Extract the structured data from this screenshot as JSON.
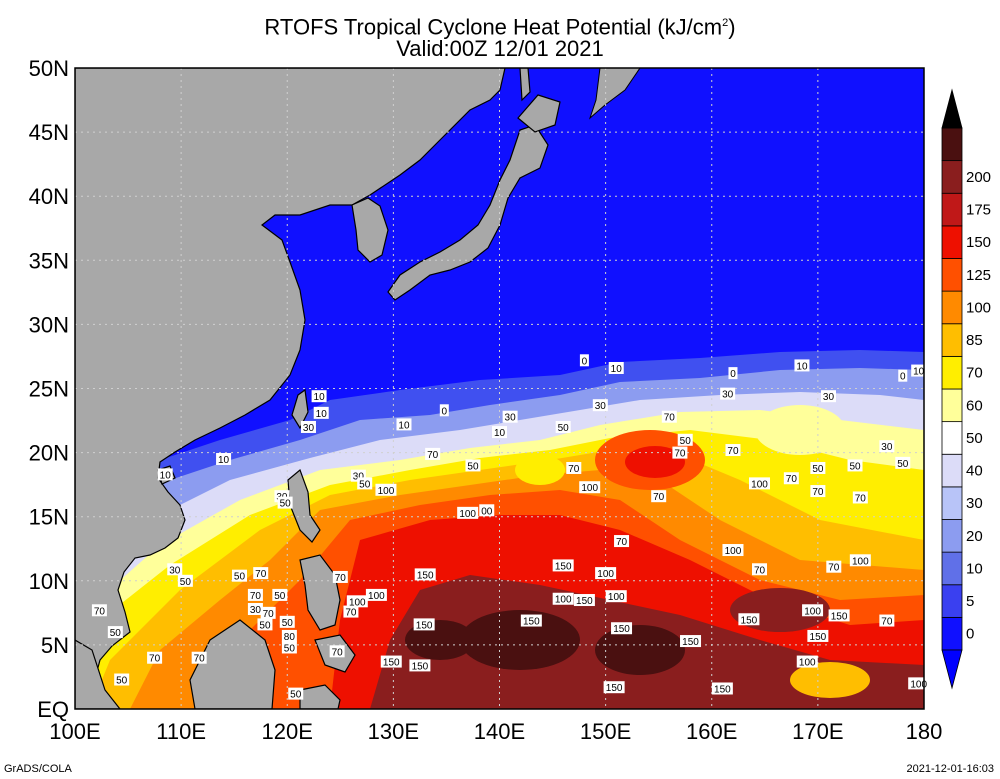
{
  "title_line1": "RTOFS Tropical Cyclone Heat Potential (kJ/cm",
  "title_sup": "2",
  "title_line1_end": ")",
  "title_line2": "Valid:00Z 12/01 2021",
  "lon_labels": [
    "100E",
    "110E",
    "120E",
    "130E",
    "140E",
    "150E",
    "160E",
    "170E",
    "180"
  ],
  "lat_labels": [
    "EQ",
    "5N",
    "10N",
    "15N",
    "20N",
    "25N",
    "30N",
    "35N",
    "40N",
    "45N",
    "50N"
  ],
  "colorbar": {
    "labels": [
      "0",
      "5",
      "10",
      "20",
      "30",
      "40",
      "50",
      "60",
      "70",
      "85",
      "100",
      "125",
      "150",
      "175",
      "200"
    ],
    "colors": [
      "#1010ff",
      "#3a40f0",
      "#6070e8",
      "#8c9cf0",
      "#b8c4f8",
      "#dcdcf8",
      "#ffffff",
      "#ffff9a",
      "#ffee00",
      "#ffbe00",
      "#ff8a00",
      "#ff5000",
      "#ee1000",
      "#c01818",
      "#8a1e1e",
      "#4a1010"
    ],
    "top_arrow_color": "#000000",
    "bottom_arrow_color": "#0000ff"
  },
  "contour_labels": [
    {
      "t": "0",
      "lon": 148.0,
      "lat": 27.2
    },
    {
      "t": "10",
      "lon": 151.0,
      "lat": 26.6
    },
    {
      "t": "0",
      "lon": 162.0,
      "lat": 26.2
    },
    {
      "t": "10",
      "lon": 168.5,
      "lat": 26.8
    },
    {
      "t": "0",
      "lon": 178.0,
      "lat": 26.0
    },
    {
      "t": "10",
      "lon": 179.5,
      "lat": 26.4
    },
    {
      "t": "30",
      "lon": 149.5,
      "lat": 23.7
    },
    {
      "t": "30",
      "lon": 161.5,
      "lat": 24.6
    },
    {
      "t": "30",
      "lon": 171.0,
      "lat": 24.4
    },
    {
      "t": "0",
      "lon": 134.8,
      "lat": 23.3
    },
    {
      "t": "10",
      "lon": 131.0,
      "lat": 22.2
    },
    {
      "t": "30",
      "lon": 141.0,
      "lat": 22.8
    },
    {
      "t": "10",
      "lon": 140.0,
      "lat": 21.6
    },
    {
      "t": "50",
      "lon": 146.0,
      "lat": 22.0
    },
    {
      "t": "70",
      "lon": 156.0,
      "lat": 22.8
    },
    {
      "t": "30",
      "lon": 176.5,
      "lat": 20.5
    },
    {
      "t": "10",
      "lon": 123.0,
      "lat": 24.4
    },
    {
      "t": "10",
      "lon": 123.2,
      "lat": 23.1
    },
    {
      "t": "30",
      "lon": 122.0,
      "lat": 22.0
    },
    {
      "t": "10",
      "lon": 114.0,
      "lat": 19.5
    },
    {
      "t": "10",
      "lon": 108.5,
      "lat": 18.3
    },
    {
      "t": "70",
      "lon": 133.7,
      "lat": 19.9
    },
    {
      "t": "50",
      "lon": 137.5,
      "lat": 19.0
    },
    {
      "t": "70",
      "lon": 147.0,
      "lat": 18.8
    },
    {
      "t": "70",
      "lon": 157.0,
      "lat": 20.0
    },
    {
      "t": "50",
      "lon": 157.5,
      "lat": 21.0
    },
    {
      "t": "70",
      "lon": 162.0,
      "lat": 20.2
    },
    {
      "t": "70",
      "lon": 167.5,
      "lat": 18.0
    },
    {
      "t": "50",
      "lon": 170.0,
      "lat": 18.8
    },
    {
      "t": "50",
      "lon": 173.5,
      "lat": 19.0
    },
    {
      "t": "50",
      "lon": 178.0,
      "lat": 19.2
    },
    {
      "t": "30",
      "lon": 126.7,
      "lat": 18.2
    },
    {
      "t": "50",
      "lon": 127.3,
      "lat": 17.6
    },
    {
      "t": "100",
      "lon": 129.3,
      "lat": 17.1
    },
    {
      "t": "100",
      "lon": 148.5,
      "lat": 17.3
    },
    {
      "t": "100",
      "lon": 164.5,
      "lat": 17.6
    },
    {
      "t": "70",
      "lon": 170.0,
      "lat": 17.0
    },
    {
      "t": "70",
      "lon": 155.0,
      "lat": 16.6
    },
    {
      "t": "70",
      "lon": 174.0,
      "lat": 16.5
    },
    {
      "t": "30",
      "lon": 119.5,
      "lat": 16.6
    },
    {
      "t": "50",
      "lon": 119.8,
      "lat": 16.1
    },
    {
      "t": "100",
      "lon": 137.0,
      "lat": 15.3
    },
    {
      "t": "00",
      "lon": 138.8,
      "lat": 15.5
    },
    {
      "t": "100",
      "lon": 162.0,
      "lat": 12.4
    },
    {
      "t": "70",
      "lon": 151.5,
      "lat": 13.1
    },
    {
      "t": "70",
      "lon": 164.5,
      "lat": 10.9
    },
    {
      "t": "70",
      "lon": 171.5,
      "lat": 11.1
    },
    {
      "t": "100",
      "lon": 174.0,
      "lat": 11.6
    },
    {
      "t": "150",
      "lon": 133.0,
      "lat": 10.5
    },
    {
      "t": "150",
      "lon": 146.0,
      "lat": 11.2
    },
    {
      "t": "100",
      "lon": 150.0,
      "lat": 10.6
    },
    {
      "t": "70",
      "lon": 125.0,
      "lat": 10.3
    },
    {
      "t": "100",
      "lon": 128.4,
      "lat": 8.9
    },
    {
      "t": "100",
      "lon": 126.6,
      "lat": 8.4
    },
    {
      "t": "70",
      "lon": 126.0,
      "lat": 7.6
    },
    {
      "t": "100",
      "lon": 146.0,
      "lat": 8.6
    },
    {
      "t": "100",
      "lon": 151.0,
      "lat": 8.8
    },
    {
      "t": "150",
      "lon": 148.0,
      "lat": 8.5
    },
    {
      "t": "100",
      "lon": 169.5,
      "lat": 7.7
    },
    {
      "t": "150",
      "lon": 172.0,
      "lat": 7.3
    },
    {
      "t": "150",
      "lon": 163.5,
      "lat": 7.0
    },
    {
      "t": "150",
      "lon": 132.9,
      "lat": 6.6
    },
    {
      "t": "150",
      "lon": 143.0,
      "lat": 6.9
    },
    {
      "t": "150",
      "lon": 151.5,
      "lat": 6.3
    },
    {
      "t": "150",
      "lon": 158.0,
      "lat": 5.3
    },
    {
      "t": "70",
      "lon": 176.5,
      "lat": 6.9
    },
    {
      "t": "150",
      "lon": 170.0,
      "lat": 5.7
    },
    {
      "t": "100",
      "lon": 169.0,
      "lat": 3.7
    },
    {
      "t": "70",
      "lon": 124.7,
      "lat": 4.5
    },
    {
      "t": "150",
      "lon": 129.8,
      "lat": 3.7
    },
    {
      "t": "150",
      "lon": 132.5,
      "lat": 3.4
    },
    {
      "t": "150",
      "lon": 150.8,
      "lat": 1.7
    },
    {
      "t": "150",
      "lon": 161.0,
      "lat": 1.6
    },
    {
      "t": "100",
      "lon": 179.5,
      "lat": 2.0
    },
    {
      "t": "30",
      "lon": 109.4,
      "lat": 10.9
    },
    {
      "t": "50",
      "lon": 110.4,
      "lat": 10.0
    },
    {
      "t": "50",
      "lon": 115.5,
      "lat": 10.4
    },
    {
      "t": "70",
      "lon": 117.5,
      "lat": 10.6
    },
    {
      "t": "70",
      "lon": 117.0,
      "lat": 8.9
    },
    {
      "t": "50",
      "lon": 119.3,
      "lat": 8.9
    },
    {
      "t": "30",
      "lon": 117.0,
      "lat": 7.8
    },
    {
      "t": "70",
      "lon": 118.2,
      "lat": 7.5
    },
    {
      "t": "50",
      "lon": 117.9,
      "lat": 6.6
    },
    {
      "t": "50",
      "lon": 120.0,
      "lat": 6.8
    },
    {
      "t": "80",
      "lon": 120.2,
      "lat": 5.7
    },
    {
      "t": "70",
      "lon": 102.3,
      "lat": 7.7
    },
    {
      "t": "50",
      "lon": 103.8,
      "lat": 6.0
    },
    {
      "t": "70",
      "lon": 107.5,
      "lat": 4.0
    },
    {
      "t": "70",
      "lon": 111.7,
      "lat": 4.0
    },
    {
      "t": "50",
      "lon": 120.2,
      "lat": 4.8
    },
    {
      "t": "50",
      "lon": 104.4,
      "lat": 2.3
    },
    {
      "t": "50",
      "lon": 120.8,
      "lat": 1.2
    }
  ],
  "footer_left": "GrADS/COLA",
  "footer_right": "2021-12-01-16:03"
}
